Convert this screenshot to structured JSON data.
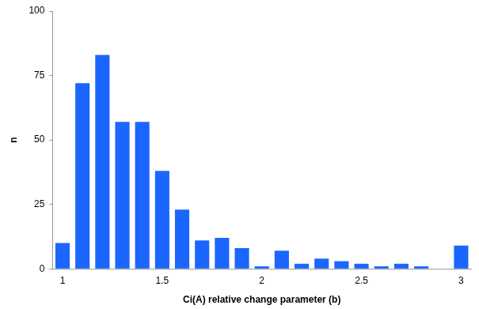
{
  "chart_data": {
    "type": "bar",
    "x_label": "Ci(A) relative change parameter (b)",
    "y_label": "n",
    "categories": [
      "1",
      null,
      null,
      null,
      null,
      "1.5",
      null,
      null,
      null,
      null,
      "2",
      null,
      null,
      null,
      null,
      "2.5",
      null,
      null,
      null,
      null,
      "3"
    ],
    "values": [
      10,
      72,
      83,
      57,
      57,
      38,
      23,
      11,
      12,
      8,
      1,
      7,
      2,
      4,
      3,
      2,
      1,
      2,
      1,
      0,
      9
    ],
    "color": "#1a66ff",
    "ylim": [
      0,
      100
    ],
    "yticks": [
      0,
      25,
      50,
      75,
      100
    ],
    "grid": false
  }
}
